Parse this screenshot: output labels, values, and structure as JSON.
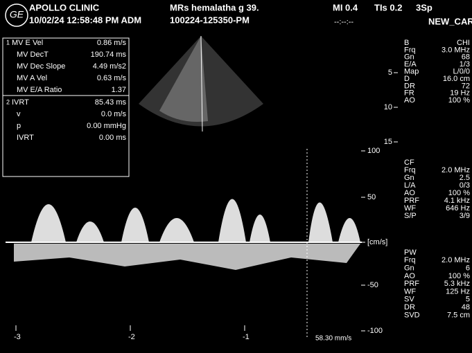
{
  "header": {
    "logo": "GE",
    "clinic": "APOLLO CLINIC",
    "datetime": "10/02/24 12:58:48 PM ADM",
    "patient": "MRs hemalatha g  39.",
    "study_id": "100224-125350-PM",
    "mi": "MI 0.4",
    "tis": "TIs 0.2",
    "probe": "3Sp",
    "clock": "--:--:--",
    "preset": "NEW_CAR"
  },
  "measurements": {
    "groups": [
      {
        "index": "1",
        "rows": [
          {
            "label": "MV E Vel",
            "value": "0.86 m/s"
          },
          {
            "label": "MV DecT",
            "value": "190.74 ms"
          },
          {
            "label": "MV Dec Slope",
            "value": "4.49 m/s2"
          },
          {
            "label": "MV A Vel",
            "value": "0.63 m/s"
          },
          {
            "label": "MV E/A Ratio",
            "value": "1.37"
          }
        ]
      },
      {
        "index": "2",
        "rows": [
          {
            "label": "IVRT",
            "value": "85.43 ms"
          }
        ]
      },
      {
        "index": "",
        "rows": [
          {
            "label": "v",
            "value": "0.0 m/s"
          },
          {
            "label": "p",
            "value": "0.00 mmHg"
          },
          {
            "label": "IVRT",
            "value": "0.00 ms"
          }
        ]
      }
    ]
  },
  "parameters": {
    "sections": [
      {
        "rows": [
          {
            "label": "B",
            "value": "CHI"
          },
          {
            "label": "Frq",
            "value": "3.0 MHz"
          },
          {
            "label": "Gn",
            "value": "68"
          },
          {
            "label": "E/A",
            "value": "1/3"
          },
          {
            "label": "Map",
            "value": "L/0/0"
          },
          {
            "label": "D",
            "value": "16.0 cm"
          },
          {
            "label": "DR",
            "value": "72"
          },
          {
            "label": "FR",
            "value": "19 Hz"
          },
          {
            "label": "AO",
            "value": "100 %"
          }
        ]
      },
      {
        "title": "CF",
        "rows": [
          {
            "label": "Frq",
            "value": "2.0 MHz"
          },
          {
            "label": "Gn",
            "value": "2.5"
          },
          {
            "label": "L/A",
            "value": "0/3"
          },
          {
            "label": "AO",
            "value": "100 %"
          },
          {
            "label": "PRF",
            "value": "4.1 kHz"
          },
          {
            "label": "WF",
            "value": "646 Hz"
          },
          {
            "label": "S/P",
            "value": "3/9"
          }
        ]
      },
      {
        "title": "PW",
        "rows": [
          {
            "label": "Frq",
            "value": "2.0 MHz"
          },
          {
            "label": "Gn",
            "value": "6"
          },
          {
            "label": "AO",
            "value": "100 %"
          },
          {
            "label": "PRF",
            "value": "5.3 kHz"
          },
          {
            "label": "WF",
            "value": "125 Hz"
          },
          {
            "label": "SV",
            "value": "5"
          },
          {
            "label": "DR",
            "value": "48"
          },
          {
            "label": "SVD",
            "value": "7.5 cm"
          }
        ]
      }
    ]
  },
  "depth_scale": [
    "5",
    "10",
    "15"
  ],
  "velocity_scale": [
    "100",
    "50",
    "[cm/s]",
    "-50",
    "-100"
  ],
  "time_scale": [
    "-3",
    "-2",
    "-1"
  ],
  "sweep": "58.30 mm/s"
}
